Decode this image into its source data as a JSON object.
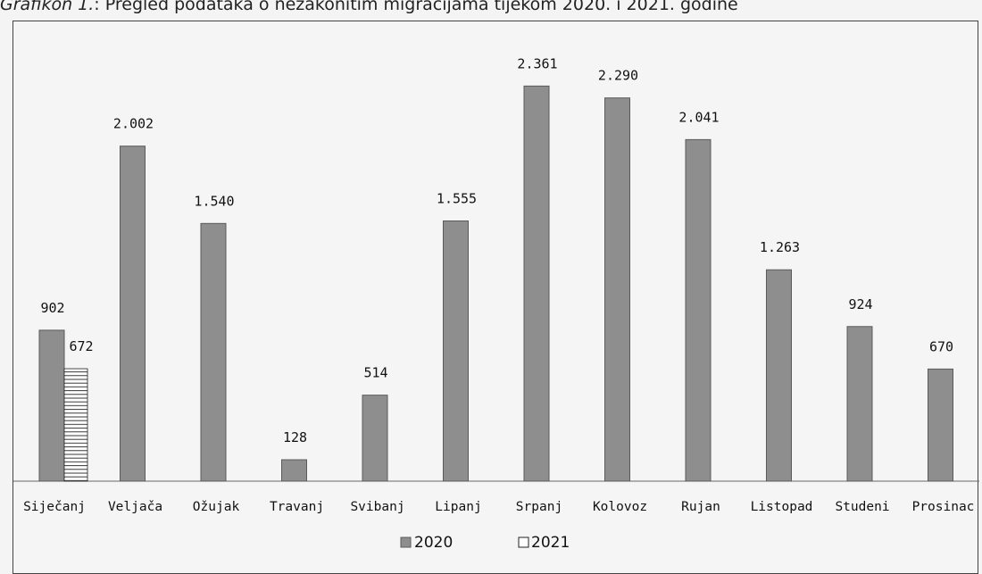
{
  "caption": {
    "lead": "Grafikon 1.",
    "text": ": Pregled podataka o nezakonitim migracijama tijekom 2020. i 2021. godine"
  },
  "colors": {
    "series_2020": "#8e8e8e",
    "series_2020_stroke": "#5a5a5a",
    "series_2021_fill": "#ffffff",
    "series_2021_hatch": "#222222",
    "axis": "#666666"
  },
  "chart_data": {
    "type": "bar",
    "title": "Grafikon 1.: Pregled podataka o nezakonitim migracijama tijekom 2020. i 2021. godine",
    "categories": [
      "Siječanj",
      "Veljača",
      "Ožujak",
      "Travanj",
      "Svibanj",
      "Lipanj",
      "Srpanj",
      "Kolovoz",
      "Rujan",
      "Listopad",
      "Studeni",
      "Prosinac"
    ],
    "series": [
      {
        "name": "2020",
        "values": [
          902,
          2002,
          1540,
          128,
          514,
          1555,
          2361,
          2290,
          2041,
          1263,
          924,
          670
        ],
        "labels": [
          "902",
          "2.002",
          "1.540",
          "128",
          "514",
          "1.555",
          "2.361",
          "2.290",
          "2.041",
          "1.263",
          "924",
          "670"
        ]
      },
      {
        "name": "2021",
        "values": [
          672,
          null,
          null,
          null,
          null,
          null,
          null,
          null,
          null,
          null,
          null,
          null
        ],
        "labels": [
          "672",
          "",
          "",
          "",
          "",
          "",
          "",
          "",
          "",
          "",
          "",
          ""
        ]
      }
    ],
    "ylim": [
      0,
      2600
    ],
    "grid": false,
    "legend_position": "bottom-center",
    "xlabel": "",
    "ylabel": ""
  }
}
